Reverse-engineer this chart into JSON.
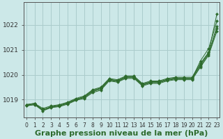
{
  "bg_color": "#cce8e8",
  "grid_color": "#aacccc",
  "line_color": "#2d6b2d",
  "marker_color": "#2d6b2d",
  "xlabel": "Graphe pression niveau de la mer (hPa)",
  "xlabel_fontsize": 8,
  "xtick_fontsize": 5.5,
  "ytick_fontsize": 6.5,
  "ylim": [
    1018.3,
    1022.9
  ],
  "xlim": [
    -0.3,
    23.3
  ],
  "yticks": [
    1019,
    1020,
    1021,
    1022
  ],
  "xticks": [
    0,
    1,
    2,
    3,
    4,
    5,
    6,
    7,
    8,
    9,
    10,
    11,
    12,
    13,
    14,
    15,
    16,
    17,
    18,
    19,
    20,
    21,
    22,
    23
  ],
  "series": [
    [
      1018.8,
      1018.85,
      1018.65,
      1018.75,
      1018.8,
      1018.9,
      1019.05,
      1019.15,
      1019.4,
      1019.5,
      1019.85,
      1019.8,
      1019.95,
      1019.95,
      1019.65,
      1019.75,
      1019.75,
      1019.85,
      1019.9,
      1019.9,
      1019.9,
      1020.45,
      1020.9,
      1022.45
    ],
    [
      1018.75,
      1018.8,
      1018.6,
      1018.7,
      1018.75,
      1018.85,
      1019.0,
      1019.1,
      1019.35,
      1019.45,
      1019.8,
      1019.75,
      1019.9,
      1019.9,
      1019.6,
      1019.7,
      1019.7,
      1019.8,
      1019.85,
      1019.85,
      1019.85,
      1020.55,
      1021.05,
      1022.15
    ],
    [
      1018.8,
      1018.85,
      1018.6,
      1018.72,
      1018.78,
      1018.88,
      1019.02,
      1019.12,
      1019.37,
      1019.47,
      1019.82,
      1019.77,
      1019.92,
      1019.92,
      1019.62,
      1019.72,
      1019.72,
      1019.82,
      1019.87,
      1019.87,
      1019.87,
      1020.4,
      1020.88,
      1021.95
    ],
    [
      1018.78,
      1018.83,
      1018.58,
      1018.7,
      1018.75,
      1018.85,
      1019.0,
      1019.08,
      1019.32,
      1019.42,
      1019.78,
      1019.73,
      1019.88,
      1019.88,
      1019.58,
      1019.68,
      1019.68,
      1019.78,
      1019.83,
      1019.83,
      1019.83,
      1020.35,
      1020.83,
      1021.85
    ],
    [
      1018.75,
      1018.8,
      1018.55,
      1018.68,
      1018.72,
      1018.82,
      1018.97,
      1019.05,
      1019.28,
      1019.38,
      1019.75,
      1019.7,
      1019.85,
      1019.85,
      1019.55,
      1019.65,
      1019.65,
      1019.75,
      1019.8,
      1019.8,
      1019.8,
      1020.3,
      1020.78,
      1021.75
    ]
  ]
}
